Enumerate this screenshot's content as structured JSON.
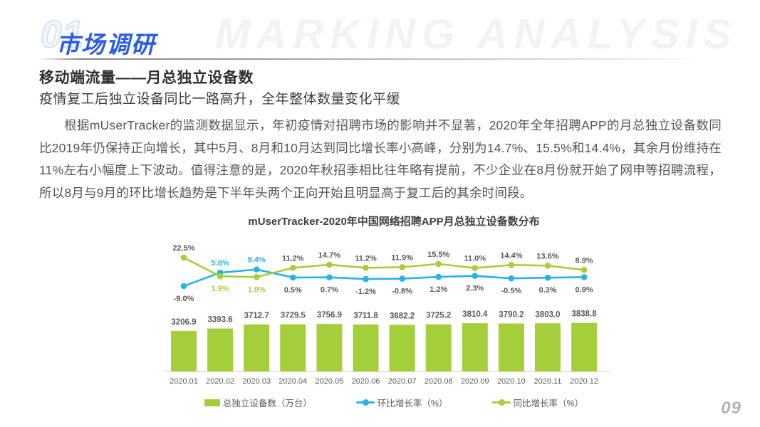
{
  "header": {
    "section_number": "01",
    "section_title": "市场调研",
    "watermark": "MARKING ANALYSIS"
  },
  "content": {
    "heading": "移动端流量——月总独立设备数",
    "subheading": "疫情复工后独立设备同比一路高升，全年整体数量变化平缓",
    "paragraph": "根据mUserTracker的监测数据显示，年初疫情对招聘市场的影响并不显著，2020年全年招聘APP的月总独立设备数同比2019年仍保持正向增长，其中5月、8月和10月达到同比增长率小高峰，分别为14.7%、15.5%和14.4%，其余月份维持在11%左右小幅度上下波动。值得注意的是，2020年秋招季相比往年略有提前，不少企业在8月份就开始了网申等招聘流程，所以8月与9月的环比增长趋势是下半年头两个正向开始且明显高于复工后的其余时间段。"
  },
  "chart_data": {
    "type": "bar",
    "title": "mUserTracker-2020年中国网络招聘APP月总独立设备数分布",
    "categories": [
      "2020.01",
      "2020.02",
      "2020.03",
      "2020.04",
      "2020.05",
      "2020.06",
      "2020.07",
      "2020.08",
      "2020.09",
      "2020.10",
      "2020.11",
      "2020.12"
    ],
    "series": [
      {
        "name": "总独立设备数（万台）",
        "type": "bar",
        "color": "#a5ce3b",
        "values": [
          3206.9,
          3393.6,
          3712.7,
          3729.5,
          3756.9,
          3711.8,
          3682.2,
          3725.2,
          3810.4,
          3790.2,
          3803.0,
          3838.8
        ],
        "labels": [
          "3206.9",
          "3393.6",
          "3712.7",
          "3729.5",
          "3756.9",
          "3711.8",
          "3682.2",
          "3725.2",
          "3810.4",
          "3790.2",
          "3803.0",
          "3838.8"
        ]
      },
      {
        "name": "环比增长率（%）",
        "type": "line",
        "color": "#29b2e8",
        "values": [
          -9.0,
          5.8,
          9.4,
          0.5,
          0.7,
          -1.2,
          -0.8,
          1.2,
          2.3,
          -0.5,
          0.3,
          0.9
        ],
        "labels": [
          "-9.0%",
          "5.8%",
          "9.4%",
          "0.5%",
          "0.7%",
          "-1.2%",
          "-0.8%",
          "1.2%",
          "2.3%",
          "-0.5%",
          "0.3%",
          "0.9%"
        ]
      },
      {
        "name": "同比增长率（%）",
        "type": "line",
        "color": "#a6ce39",
        "values": [
          22.5,
          1.9,
          1.0,
          11.2,
          14.7,
          11.2,
          11.9,
          15.5,
          11.0,
          14.4,
          13.6,
          8.9
        ],
        "labels": [
          "22.5%",
          "1.9%",
          "1.0%",
          "11.2%",
          "14.7%",
          "11.2%",
          "11.9%",
          "15.5%",
          "11.0%",
          "14.4%",
          "13.6%",
          "8.9%"
        ]
      }
    ],
    "label_color_default": "#595959",
    "highlighted_label_indices": [
      1,
      2
    ],
    "legend_position": "bottom",
    "y_axis_visible": false,
    "grid": false
  },
  "footer": {
    "page_number": "09"
  }
}
